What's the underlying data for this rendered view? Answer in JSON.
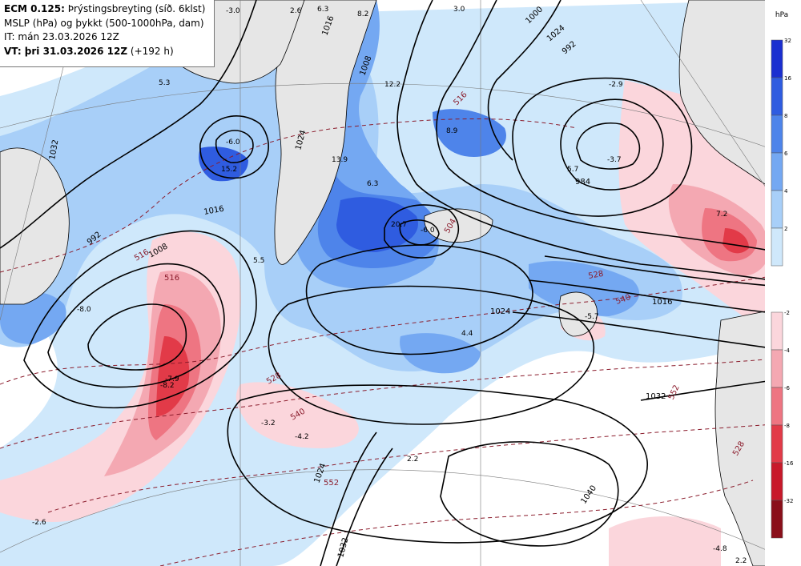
{
  "header": {
    "model": "ECM 0.125:",
    "product": " Þrýstingsbreyting (síð. 6klst)",
    "line2": "MSLP (hPa) og þykkt (500-1000hPa, dam)",
    "init_time": "IT: mán 23.03.2026 12Z",
    "valid_label": "VT: þri 31.03.2026 12Z",
    "lead": " (+192 h)"
  },
  "legend": {
    "unit": "hPa",
    "rise": [
      {
        "label": "32",
        "color": "#1b2fd0"
      },
      {
        "label": "16",
        "color": "#2f5ce0"
      },
      {
        "label": "8",
        "color": "#4e84ea"
      },
      {
        "label": "6",
        "color": "#74a8f2"
      },
      {
        "label": "4",
        "color": "#a8cff8"
      },
      {
        "label": "2",
        "color": "#cfe8fb"
      }
    ],
    "fall": [
      {
        "label": "-2",
        "color": "#fbd6dc"
      },
      {
        "label": "-4",
        "color": "#f4a8b2"
      },
      {
        "label": "-6",
        "color": "#ee7582"
      },
      {
        "label": "-8",
        "color": "#e23a48"
      },
      {
        "label": "-16",
        "color": "#c8192a"
      },
      {
        "label": "-32",
        "color": "#8a0f1a"
      }
    ]
  },
  "isobar_labels": [
    "1016",
    "1008",
    "992",
    "1024",
    "1032",
    "1040",
    "1016",
    "1024",
    "1024",
    "1032",
    "1008",
    "1000",
    "992",
    "984",
    "1016",
    "1032",
    "1024"
  ],
  "thickness_labels": [
    "516",
    "516",
    "528",
    "540",
    "540",
    "528",
    "552",
    "552",
    "516",
    "528",
    "504"
  ],
  "tendency_values": [
    "-3.0",
    "2.6",
    "6.3",
    "8.2",
    "3.0",
    "5.3",
    "-6.0",
    "15.2",
    "12.2",
    "8.9",
    "-2.9",
    "-3.7",
    "5.7",
    "13.9",
    "6.3",
    "20.7",
    "-6.0",
    "5.5",
    "-8.0",
    "-7.9",
    "-8.2",
    "-3.2",
    "-4.2",
    "4.4",
    "2.2",
    "-2.6",
    "7.2",
    "-4.8",
    "2.2",
    "-5.7"
  ]
}
